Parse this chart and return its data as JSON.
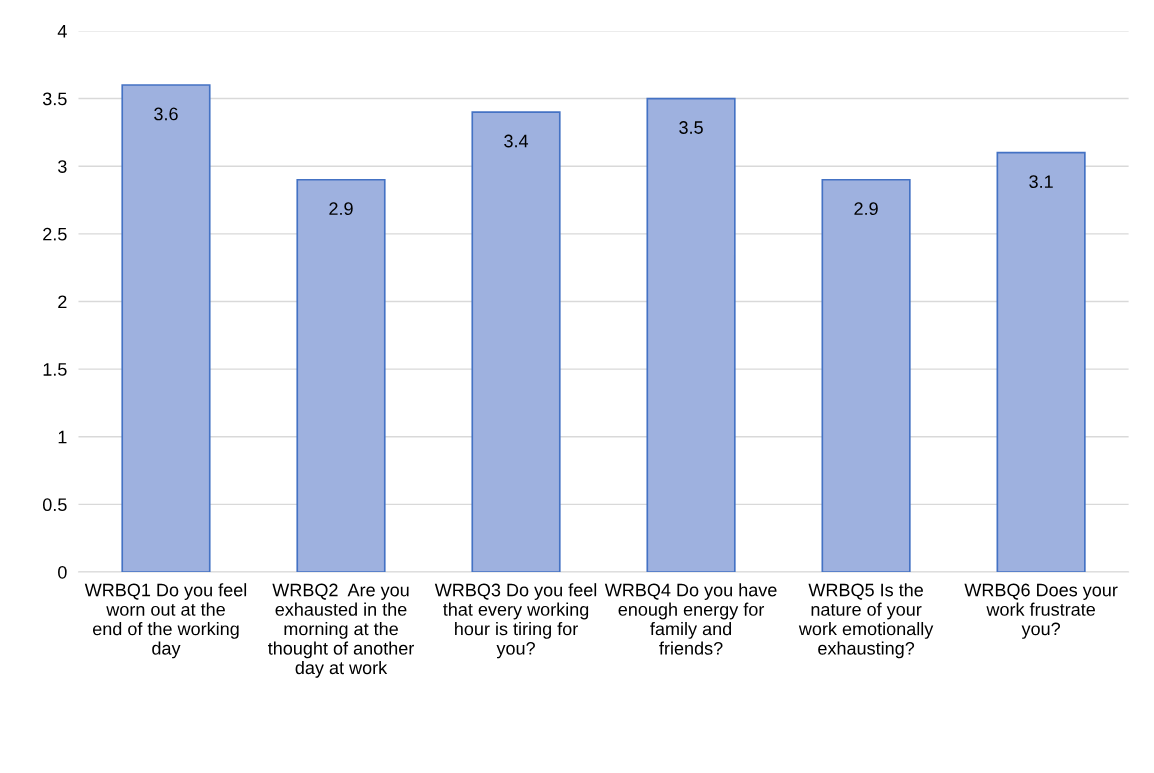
{
  "chart_data": {
    "type": "bar",
    "categories": [
      "WRBQ1 Do you feel worn out at the end of the working day",
      "WRBQ2  Are you exhausted in the morning at the thought of another day at work",
      "WRBQ3 Do you feel that every working hour is tiring for you?",
      "WRBQ4 Do you have enough energy for family and friends?",
      "WRBQ5 Is the nature of your work emotionally exhausting?",
      "WRBQ6 Does your work frustrate you?"
    ],
    "values": [
      3.6,
      2.9,
      3.4,
      3.5,
      2.9,
      3.1
    ],
    "color": "#9eb1df",
    "ylim": [
      0,
      4
    ],
    "yticks": [
      0,
      0.5,
      1,
      1.5,
      2,
      2.5,
      3,
      3.5,
      4
    ],
    "grid": "y",
    "data_labels": true
  }
}
